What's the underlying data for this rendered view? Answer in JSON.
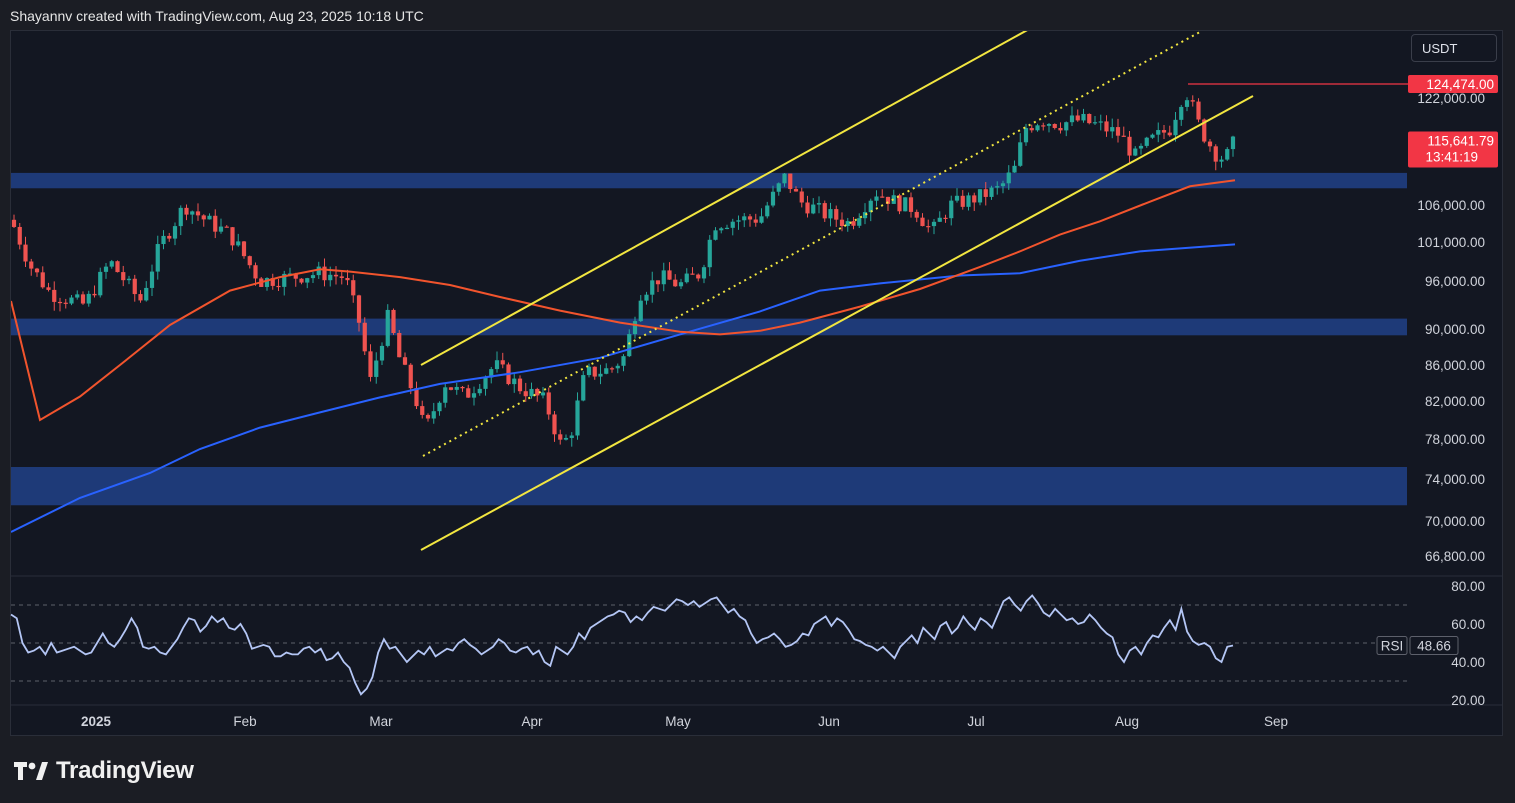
{
  "header": {
    "attribution": "Shayannv created with TradingView.com, Aug 23, 2025 10:18 UTC"
  },
  "currency_label": "USDT",
  "footer": {
    "brand": "TradingView"
  },
  "chart_data": {
    "type": "candlestick",
    "title": "",
    "y_axis_ticks": [
      "122,000.00",
      "106,000.00",
      "101,000.00",
      "96,000.00",
      "90,000.00",
      "86,000.00",
      "82,000.00",
      "78,000.00",
      "74,000.00",
      "70,000.00",
      "66,800.00"
    ],
    "y_axis_tick_values": [
      122000,
      106000,
      101000,
      96000,
      90000,
      86000,
      82000,
      78000,
      74000,
      70000,
      66800
    ],
    "x_axis_ticks": [
      "2025",
      "Feb",
      "Mar",
      "Apr",
      "May",
      "Jun",
      "Jul",
      "Aug",
      "Sep"
    ],
    "price_labels": {
      "high": {
        "text": "124,474.00",
        "value": 124474,
        "color": "#f23645"
      },
      "last": {
        "text": "115,641.79",
        "value": 115641.79,
        "countdown": "13:41:19",
        "color": "#f23645"
      }
    },
    "support_resistance_zones": [
      {
        "from": 108500,
        "to": 110800
      },
      {
        "from": 89300,
        "to": 91300
      },
      {
        "from": 71500,
        "to": 75200
      }
    ],
    "colors": {
      "up": "#26a69a",
      "down": "#ef5350",
      "zone": "#1e3a78",
      "channel": "#f2e640",
      "ma_short": "#f2542d",
      "ma_long": "#2962ff",
      "rsi": "#b4c6f5"
    },
    "rsi": {
      "label": "RSI",
      "value": "48.66",
      "ticks": [
        "80.00",
        "60.00",
        "40.00",
        "20.00"
      ],
      "tick_values": [
        80,
        60,
        40,
        20
      ],
      "values": [
        65,
        63,
        50,
        45,
        46,
        48,
        44,
        50,
        45,
        46,
        47,
        48,
        46,
        44,
        45,
        50,
        55,
        50,
        48,
        52,
        57,
        63,
        58,
        48,
        47,
        48,
        45,
        44,
        48,
        52,
        58,
        63,
        62,
        56,
        59,
        64,
        61,
        63,
        58,
        57,
        60,
        55,
        47,
        48,
        49,
        48,
        43,
        43,
        45,
        44,
        44,
        47,
        48,
        45,
        47,
        41,
        42,
        45,
        40,
        37,
        29,
        23,
        26,
        32,
        45,
        52,
        47,
        48,
        44,
        40,
        43,
        46,
        44,
        48,
        43,
        45,
        47,
        46,
        50,
        52,
        49,
        47,
        44,
        46,
        48,
        52,
        50,
        46,
        45,
        47,
        48,
        44,
        46,
        40,
        38,
        48,
        46,
        44,
        48,
        55,
        52,
        58,
        60,
        62,
        64,
        65,
        67,
        66,
        61,
        64,
        62,
        66,
        69,
        68,
        67,
        70,
        73,
        72,
        70,
        72,
        69,
        71,
        73,
        74,
        70,
        66,
        68,
        64,
        62,
        55,
        50,
        52,
        53,
        55,
        52,
        48,
        49,
        51,
        55,
        54,
        60,
        62,
        64,
        59,
        63,
        61,
        57,
        52,
        51,
        49,
        48,
        46,
        48,
        45,
        42,
        48,
        51,
        54,
        50,
        58,
        55,
        52,
        59,
        61,
        55,
        58,
        64,
        60,
        57,
        63,
        61,
        58,
        65,
        72,
        74,
        70,
        67,
        72,
        75,
        71,
        66,
        64,
        68,
        65,
        62,
        63,
        60,
        61,
        65,
        62,
        58,
        55,
        53,
        44,
        40,
        46,
        48,
        44,
        50,
        54,
        53,
        58,
        62,
        57,
        68,
        56,
        51,
        49,
        50,
        48,
        42,
        40,
        48,
        48.66
      ]
    },
    "series": [
      {
        "name": "",
        "type": "moving_average",
        "color": "#f2542d"
      },
      {
        "name": "",
        "type": "moving_average",
        "color": "#2962ff"
      }
    ]
  }
}
